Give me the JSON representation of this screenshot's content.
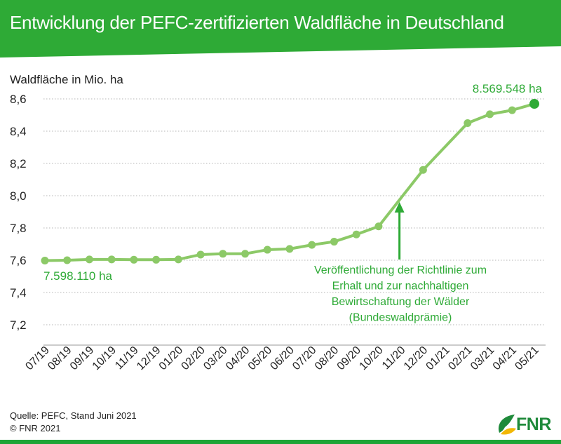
{
  "header": {
    "title": "Entwicklung der PEFC-zertifizierten Waldfläche in Deutschland"
  },
  "chart_data": {
    "type": "line",
    "title": "Entwicklung der PEFC-zertifizierten Waldfläche in Deutschland",
    "ylabel": "Waldfläche in Mio. ha",
    "xlabel": "",
    "ylim": [
      7.1,
      8.6
    ],
    "yticks": [
      "7,2",
      "7,4",
      "7,6",
      "7,8",
      "8,0",
      "8,2",
      "8,4",
      "8,6"
    ],
    "grid": "horizontal dotted",
    "categories": [
      "07/19",
      "08/19",
      "09/19",
      "10/19",
      "11/19",
      "12/19",
      "01/20",
      "02/20",
      "03/20",
      "04/20",
      "05/20",
      "06/20",
      "07/20",
      "08/20",
      "09/20",
      "10/20",
      "11/20",
      "12/20",
      "01/21",
      "02/21",
      "03/21",
      "04/21",
      "05/21"
    ],
    "series": [
      {
        "values": [
          7.598,
          7.6,
          7.605,
          7.605,
          7.603,
          7.603,
          7.605,
          7.635,
          7.64,
          7.64,
          7.665,
          7.67,
          7.695,
          7.715,
          7.76,
          7.81,
          null,
          8.16,
          null,
          8.45,
          8.505,
          8.53,
          8.5695
        ],
        "color": "#8cc967"
      }
    ],
    "annotations": {
      "first_value": "7.598.110 ha",
      "last_value": "8.569.548 ha",
      "note_lines": [
        "Veröffentlichung der Richtlinie zum",
        "Erhalt und zur nachhaltigen",
        "Bewirtschaftung der Wälder",
        "(Bundeswaldprämie)"
      ],
      "note_points_to": "11/20"
    },
    "colors": {
      "line": "#8cc967",
      "point": "#8cc967",
      "last_point": "#2eaa36",
      "label": "#2eaa36",
      "banner": "#2eaa36"
    }
  },
  "footer": {
    "source": "Quelle: PEFC, Stand Juni 2021",
    "copyright": "© FNR 2021",
    "logo_text": "FNR"
  }
}
